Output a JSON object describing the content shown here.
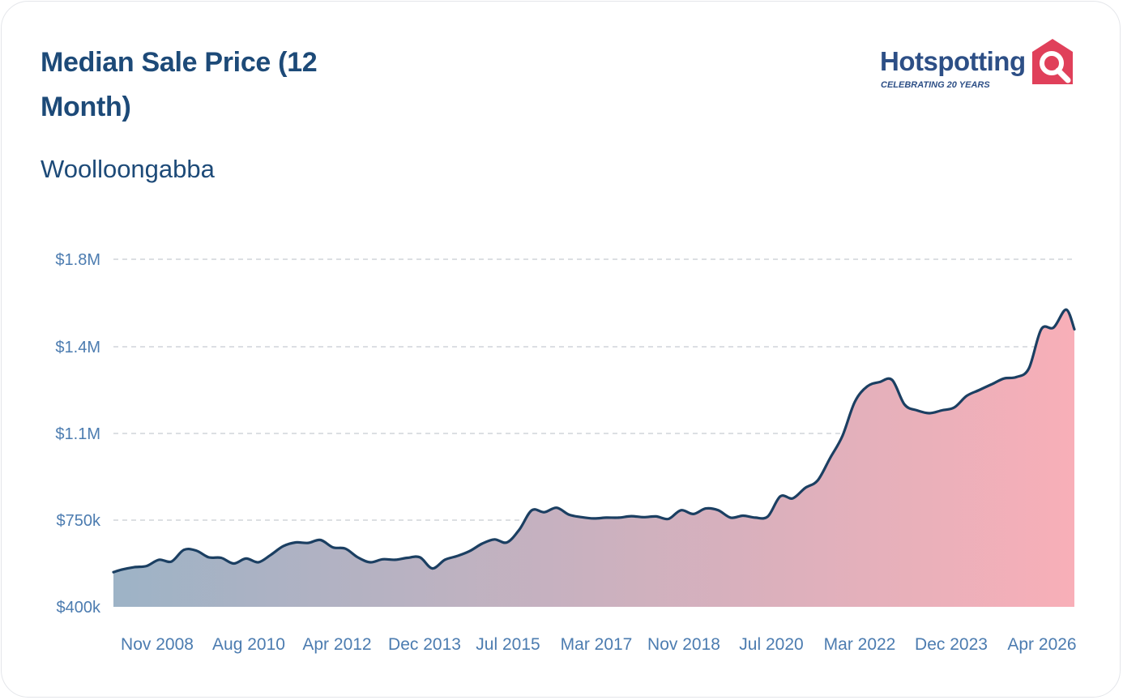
{
  "header": {
    "title": "Median Sale Price (12 Month)",
    "subtitle": "Woolloongabba"
  },
  "logo": {
    "name": "Hotspotting",
    "tagline": "CELEBRATING 20 YEARS",
    "icon": "house-magnifier-icon",
    "colors": {
      "text": "#2d4f86",
      "accent": "#e0405a"
    }
  },
  "chart_data": {
    "type": "area",
    "title": "Median Sale Price (12 Month)",
    "subtitle": "Woolloongabba",
    "x_start": "2007-08",
    "x_end": "2026-12",
    "x_tick_labels": [
      "Nov 2008",
      "Aug 2010",
      "Apr 2012",
      "Dec 2013",
      "Jul 2015",
      "Mar 2017",
      "Nov 2018",
      "Jul 2020",
      "Mar 2022",
      "Dec 2023",
      "Apr 2026"
    ],
    "y_ticks": [
      400000,
      750000,
      1100000,
      1400000,
      1800000
    ],
    "y_tick_labels": [
      "$400k",
      "$750k",
      "$1.1M",
      "$1.4M",
      "$1.8M"
    ],
    "ylim": [
      400000,
      1800000
    ],
    "grid": true,
    "colors": {
      "line": "#1b3f62",
      "fill_start": "#9db3c6",
      "fill_end": "#f8afb8"
    },
    "series": [
      {
        "points": [
          [
            "2007-08",
            540000
          ],
          [
            "2007-10",
            550000
          ],
          [
            "2008-01",
            560000
          ],
          [
            "2008-04",
            565000
          ],
          [
            "2008-07",
            590000
          ],
          [
            "2008-10",
            583000
          ],
          [
            "2009-01",
            630000
          ],
          [
            "2009-04",
            627000
          ],
          [
            "2009-07",
            600000
          ],
          [
            "2009-10",
            598000
          ],
          [
            "2010-01",
            575000
          ],
          [
            "2010-04",
            595000
          ],
          [
            "2010-07",
            580000
          ],
          [
            "2010-10",
            610000
          ],
          [
            "2011-01",
            645000
          ],
          [
            "2011-04",
            660000
          ],
          [
            "2011-07",
            658000
          ],
          [
            "2011-10",
            670000
          ],
          [
            "2012-01",
            640000
          ],
          [
            "2012-04",
            635000
          ],
          [
            "2012-07",
            600000
          ],
          [
            "2012-10",
            580000
          ],
          [
            "2013-01",
            592000
          ],
          [
            "2013-04",
            590000
          ],
          [
            "2013-07",
            598000
          ],
          [
            "2013-10",
            600000
          ],
          [
            "2014-01",
            555000
          ],
          [
            "2014-04",
            590000
          ],
          [
            "2014-07",
            605000
          ],
          [
            "2014-10",
            625000
          ],
          [
            "2015-01",
            655000
          ],
          [
            "2015-04",
            672000
          ],
          [
            "2015-07",
            660000
          ],
          [
            "2015-10",
            712000
          ],
          [
            "2016-01",
            790000
          ],
          [
            "2016-04",
            782000
          ],
          [
            "2016-07",
            800000
          ],
          [
            "2016-10",
            772000
          ],
          [
            "2017-01",
            762000
          ],
          [
            "2017-04",
            757000
          ],
          [
            "2017-07",
            760000
          ],
          [
            "2017-10",
            760000
          ],
          [
            "2018-01",
            766000
          ],
          [
            "2018-04",
            762000
          ],
          [
            "2018-07",
            765000
          ],
          [
            "2018-10",
            755000
          ],
          [
            "2019-01",
            790000
          ],
          [
            "2019-04",
            775000
          ],
          [
            "2019-07",
            797000
          ],
          [
            "2019-10",
            790000
          ],
          [
            "2020-01",
            760000
          ],
          [
            "2020-04",
            768000
          ],
          [
            "2020-07",
            760000
          ],
          [
            "2020-10",
            765000
          ],
          [
            "2021-01",
            846000
          ],
          [
            "2021-04",
            838000
          ],
          [
            "2021-07",
            880000
          ],
          [
            "2021-10",
            910000
          ],
          [
            "2022-01",
            1000000
          ],
          [
            "2022-04",
            1090000
          ],
          [
            "2022-07",
            1210000
          ],
          [
            "2022-10",
            1263000
          ],
          [
            "2023-01",
            1278000
          ],
          [
            "2023-04",
            1285000
          ],
          [
            "2023-07",
            1200000
          ],
          [
            "2023-10",
            1180000
          ],
          [
            "2024-01",
            1170000
          ],
          [
            "2024-04",
            1180000
          ],
          [
            "2024-07",
            1190000
          ],
          [
            "2024-10",
            1230000
          ],
          [
            "2025-01",
            1250000
          ],
          [
            "2025-04",
            1270000
          ],
          [
            "2025-07",
            1290000
          ],
          [
            "2025-10",
            1295000
          ],
          [
            "2026-01",
            1325000
          ],
          [
            "2026-04",
            1480000
          ],
          [
            "2026-07",
            1488000
          ],
          [
            "2026-10",
            1570000
          ],
          [
            "2026-12",
            1480000
          ]
        ]
      }
    ]
  }
}
